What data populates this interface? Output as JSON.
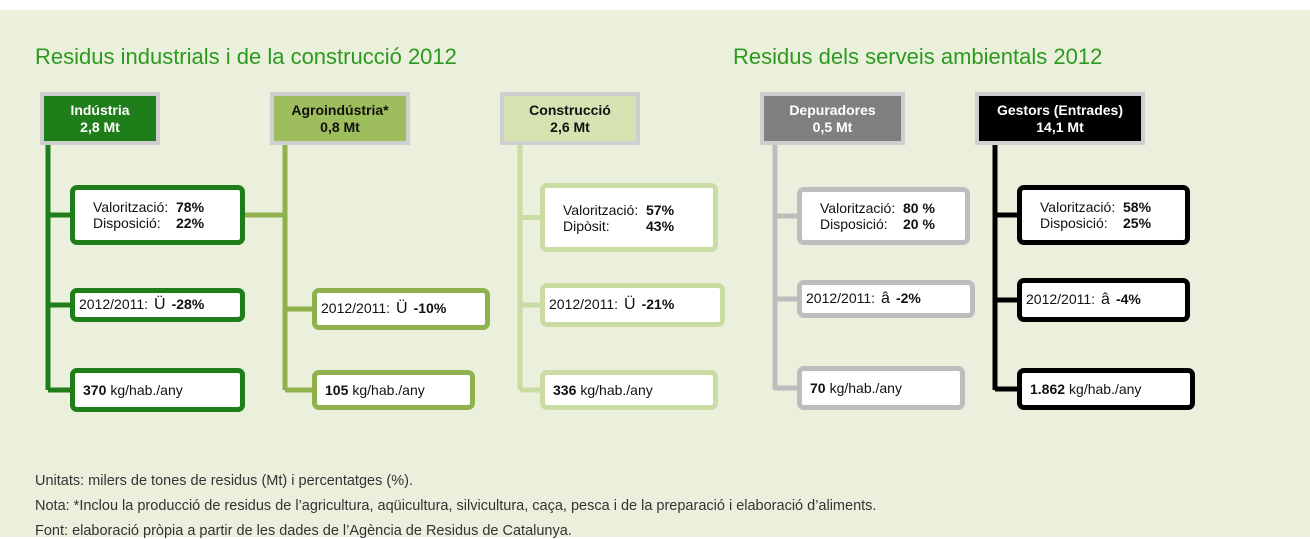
{
  "titles": [
    "Residus industrials i de la construcció 2012",
    "Residus dels serveis ambientals 2012"
  ],
  "columns": [
    {
      "name": "Indústria",
      "amount": "2,8 Mt",
      "split": [
        [
          "Valorització:",
          "78%"
        ],
        [
          "Disposició:",
          "22%"
        ]
      ],
      "change": {
        "label": "2012/2011:",
        "arrow": "Ü",
        "value": "-28%"
      },
      "per": {
        "value": "370",
        "unit": "kg/hab./any"
      }
    },
    {
      "name": "Agroindústria*",
      "amount": "0,8 Mt",
      "change": {
        "label": "2012/2011:",
        "arrow": "Ü",
        "value": "-10%"
      },
      "per": {
        "value": "105",
        "unit": "kg/hab./any"
      }
    },
    {
      "name": "Construcció",
      "amount": "2,6 Mt",
      "split": [
        [
          "Valorització:",
          "57%"
        ],
        [
          "Dipòsit:",
          "43%"
        ]
      ],
      "change": {
        "label": "2012/2011:",
        "arrow": "Ü",
        "value": "-21%"
      },
      "per": {
        "value": "336",
        "unit": "kg/hab./any"
      }
    },
    {
      "name": "Depuradores",
      "amount": "0,5 Mt",
      "split": [
        [
          "Valorització:",
          "80 %"
        ],
        [
          "Disposició:",
          "20 %"
        ]
      ],
      "change": {
        "label": "2012/2011:",
        "arrow": "â",
        "value": "-2%"
      },
      "per": {
        "value": "70",
        "unit": "kg/hab./any"
      }
    },
    {
      "name": "Gestors (Entrades)",
      "amount": "14,1 Mt",
      "split": [
        [
          "Valorització:",
          "58%"
        ],
        [
          "Disposició:",
          "25%"
        ]
      ],
      "change": {
        "label": "2012/2011:",
        "arrow": "â",
        "value": "-4%"
      },
      "per": {
        "value": "1.862",
        "unit": "kg/hab./any"
      }
    }
  ],
  "notes": [
    "Unitats: milers de tones de residus (Mt) i percentatges (%).",
    "Nota: *Inclou la producció de residus de l’agricultura, aqüicultura, silvicultura, caça, pesca i de la preparació i elaboració d’aliments.",
    "Font: elaboració pròpia a partir de les dades de l’Agència de Residus de Catalunya."
  ]
}
